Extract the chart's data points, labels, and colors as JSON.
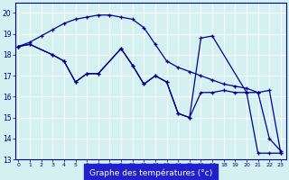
{
  "background_color": "#d4f0f0",
  "line_color": "#00008b",
  "xlabel": "Graphe des températures (°c)",
  "xlabel_bg": "#2020cc",
  "ylim": [
    13,
    20.5
  ],
  "xlim": [
    -0.3,
    23.5
  ],
  "yticks": [
    13,
    14,
    15,
    16,
    17,
    18,
    19,
    20
  ],
  "xticks": [
    0,
    1,
    2,
    3,
    4,
    5,
    6,
    7,
    8,
    9,
    10,
    11,
    12,
    13,
    14,
    15,
    16,
    17,
    18,
    19,
    20,
    21,
    22,
    23
  ],
  "s1x": [
    0,
    1,
    3,
    4,
    5,
    6,
    7,
    9,
    10,
    11,
    12,
    13,
    14,
    15,
    16,
    17,
    20,
    21,
    22,
    23
  ],
  "s1y": [
    18.4,
    18.5,
    18.0,
    17.7,
    16.7,
    17.1,
    17.1,
    18.3,
    17.5,
    16.6,
    17.0,
    16.7,
    15.2,
    15.0,
    18.8,
    18.9,
    16.2,
    16.2,
    16.3,
    13.3
  ],
  "s2x": [
    0,
    1,
    3,
    4,
    5,
    6,
    7,
    9,
    10,
    11,
    12,
    13,
    14,
    15,
    16,
    17,
    18,
    19,
    20,
    21,
    22,
    23
  ],
  "s2y": [
    18.4,
    18.5,
    18.0,
    17.7,
    16.7,
    17.1,
    17.1,
    18.3,
    17.5,
    16.6,
    17.0,
    16.7,
    15.2,
    15.0,
    16.2,
    16.2,
    16.3,
    16.2,
    16.2,
    13.3,
    13.3,
    13.3
  ],
  "s3x": [
    0,
    1,
    2,
    3,
    4,
    5,
    6,
    7,
    8,
    9,
    10,
    11,
    12,
    13,
    14,
    15,
    16,
    17,
    18,
    19,
    20,
    21,
    22,
    23
  ],
  "s3y": [
    18.4,
    18.6,
    18.9,
    19.2,
    19.5,
    19.7,
    19.8,
    19.9,
    19.9,
    19.8,
    19.7,
    19.3,
    18.5,
    17.7,
    17.4,
    17.2,
    17.0,
    16.8,
    16.6,
    16.5,
    16.4,
    16.2,
    14.0,
    13.4
  ]
}
